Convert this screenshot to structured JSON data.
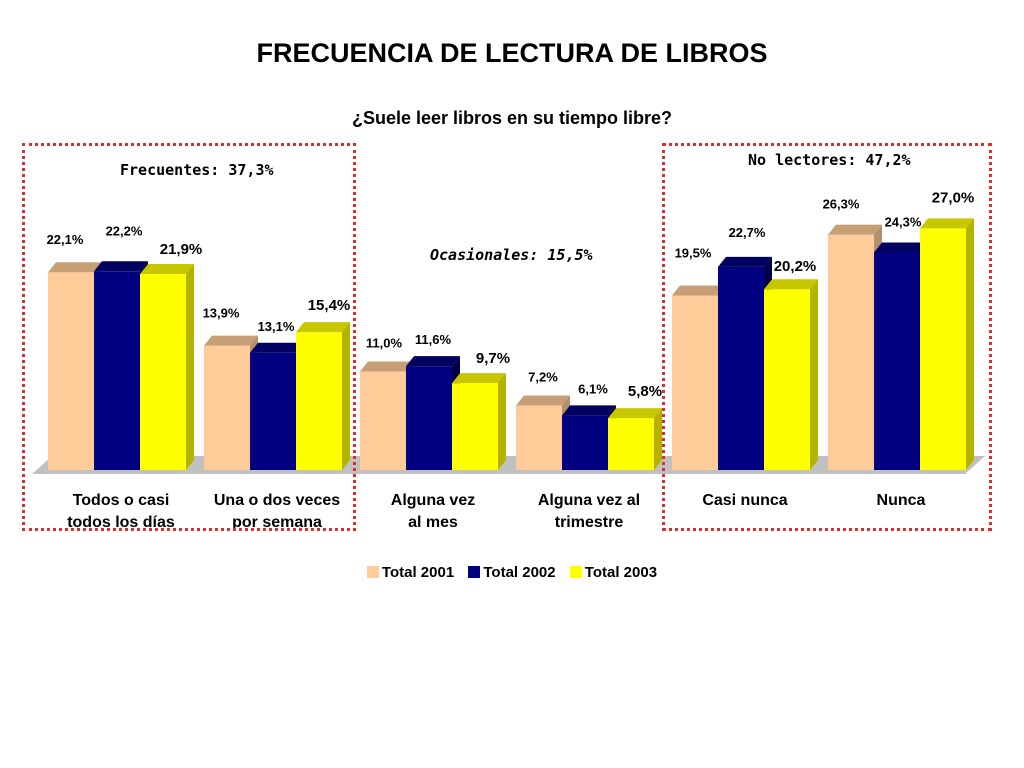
{
  "page": {
    "title": "FRECUENCIA DE LECTURA DE LIBROS",
    "subtitle": "¿Suele leer libros en su tiempo libre?"
  },
  "groups": {
    "frecuentes": "Frecuentes: 37,3%",
    "ocasionales": "Ocasionales: 15,5%",
    "no_lectores": "No lectores: 47,2%"
  },
  "colors": {
    "series_2001": "#ffcc99",
    "series_2002": "#000080",
    "series_2003": "#ffff00",
    "group_box": "#d63030",
    "floor": "#c0c0c0"
  },
  "chart_data": {
    "type": "bar",
    "title": "FRECUENCIA DE LECTURA DE LIBROS",
    "subtitle": "¿Suele leer libros en su tiempo libre?",
    "categories": [
      [
        "Todos o casi",
        "todos los días"
      ],
      [
        "Una o dos veces",
        "por semana"
      ],
      [
        "Alguna vez",
        "al mes"
      ],
      [
        "Alguna vez al",
        "trimestre"
      ],
      [
        "Casi nunca"
      ],
      [
        "Nunca"
      ]
    ],
    "series": [
      {
        "name": "Total 2001",
        "values": [
          22.1,
          13.9,
          11.0,
          7.2,
          19.5,
          26.3
        ],
        "labels": [
          "22,1%",
          "13,9%",
          "11,0%",
          "7,2%",
          "19,5%",
          "26,3%"
        ]
      },
      {
        "name": "Total 2002",
        "values": [
          22.2,
          13.1,
          11.6,
          6.1,
          22.7,
          24.3
        ],
        "labels": [
          "22,2%",
          "13,1%",
          "11,6%",
          "6,1%",
          "22,7%",
          "24,3%"
        ]
      },
      {
        "name": "Total 2003",
        "values": [
          21.9,
          15.4,
          9.7,
          5.8,
          20.2,
          27.0
        ],
        "labels": [
          "21,9%",
          "15,4%",
          "9,7%",
          "5,8%",
          "20,2%",
          "27,0%"
        ]
      }
    ],
    "legend_position": "bottom",
    "grid": false
  }
}
